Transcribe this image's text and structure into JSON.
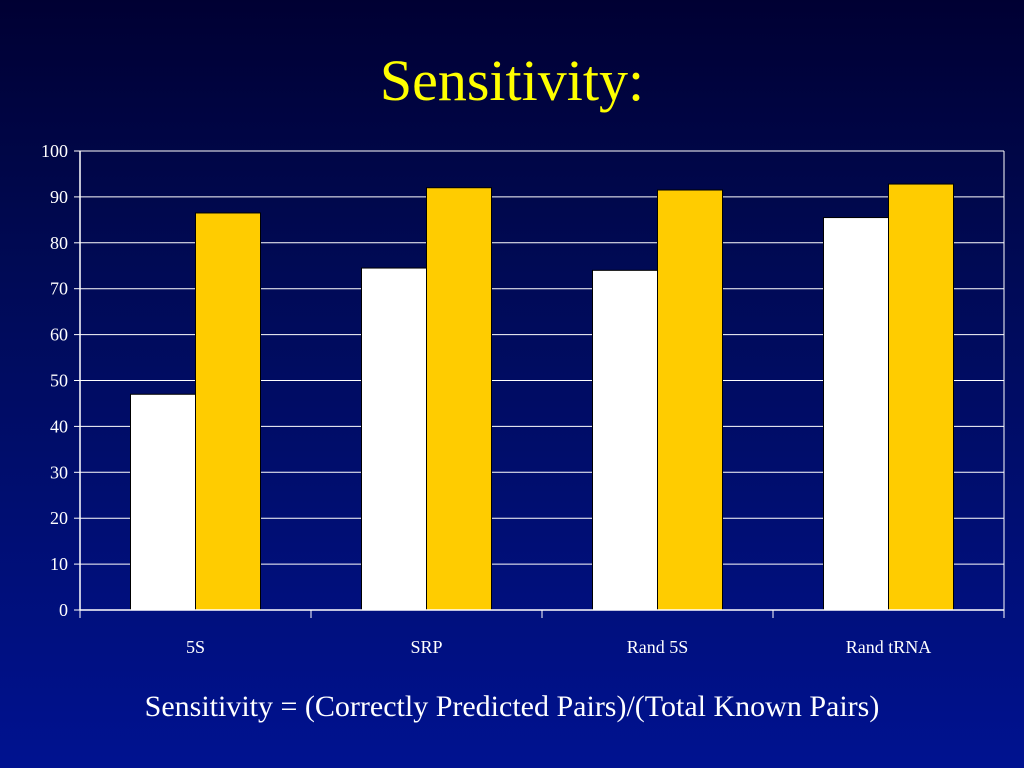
{
  "slide": {
    "title": "Sensitivity:",
    "footnote": "Sensitivity = (Correctly Predicted Pairs)/(Total Known Pairs)"
  },
  "chart_data": {
    "type": "bar",
    "categories": [
      "5S",
      "SRP",
      "Rand 5S",
      "Rand tRNA"
    ],
    "series": [
      {
        "color": "#ffffff",
        "values": [
          47,
          74.5,
          74,
          85.5
        ]
      },
      {
        "color": "#ffcc00",
        "values": [
          86.5,
          92,
          91.5,
          92.8
        ]
      }
    ],
    "ylim": [
      0,
      100
    ],
    "yticks": [
      0,
      10,
      20,
      30,
      40,
      50,
      60,
      70,
      80,
      90,
      100
    ],
    "grid": true,
    "legend": "none"
  }
}
